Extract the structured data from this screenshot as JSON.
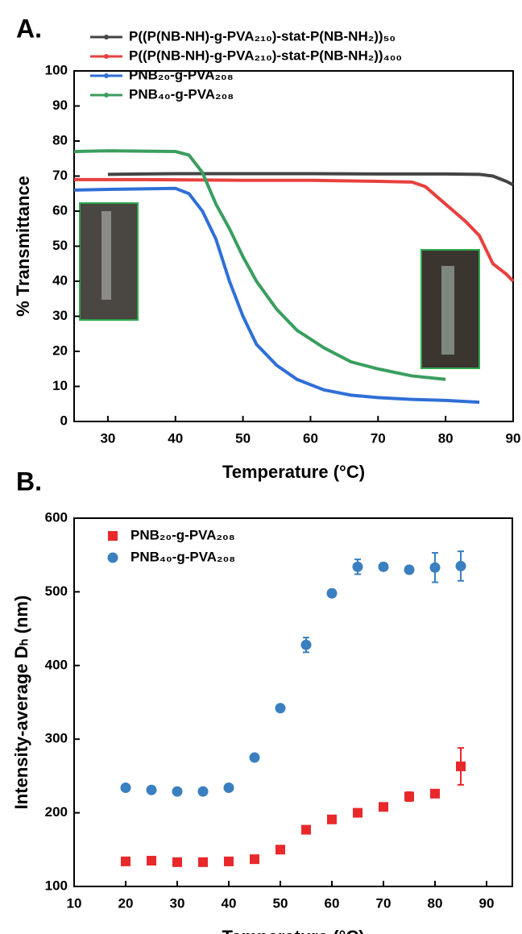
{
  "chart_data": [
    {
      "type": "line",
      "panel_label": "A.",
      "x_label": "Temperature (°C)",
      "y_label": "% Transmittance",
      "xlim": [
        25,
        90
      ],
      "ylim": [
        0,
        100
      ],
      "xticks": [
        30,
        40,
        50,
        60,
        70,
        80,
        90
      ],
      "yticks": [
        0,
        10,
        20,
        30,
        40,
        50,
        60,
        70,
        80,
        90,
        100
      ],
      "legend": "top-right",
      "series": [
        {
          "name": "P((P(NB-NH)-g-PVA₂₁₀)-stat-P(NB-NH₂))₅₀",
          "color": "#444444",
          "x": [
            30,
            35,
            40,
            50,
            60,
            70,
            80,
            85,
            87,
            89,
            90
          ],
          "values": [
            70.5,
            70.6,
            70.7,
            70.7,
            70.7,
            70.6,
            70.6,
            70.5,
            70,
            68.5,
            67.5
          ]
        },
        {
          "name": "P((P(NB-NH)-g-PVA₂₁₀)-stat-P(NB-NH₂))₄₀₀",
          "color": "#e8403e",
          "x": [
            25,
            35,
            50,
            60,
            70,
            75,
            77,
            80,
            83,
            85,
            87,
            89,
            90
          ],
          "values": [
            69,
            69,
            68.8,
            68.8,
            68.5,
            68.3,
            67,
            62,
            57,
            53,
            45,
            42,
            40
          ]
        },
        {
          "name": "PNB₂₀-g-PVA₂₀₈",
          "color": "#2f6fd6",
          "x": [
            25,
            30,
            40,
            42,
            44,
            46,
            48,
            50,
            52,
            55,
            58,
            62,
            66,
            70,
            75,
            80,
            85
          ],
          "values": [
            66,
            66.2,
            66.5,
            65,
            60,
            52,
            40,
            30,
            22,
            16,
            12,
            9,
            7.5,
            6.8,
            6.3,
            6,
            5.5
          ]
        },
        {
          "name": "PNB₄₀-g-PVA₂₀₈",
          "color": "#3a9e5f",
          "x": [
            25,
            30,
            40,
            42,
            44,
            46,
            48,
            50,
            52,
            55,
            58,
            62,
            66,
            70,
            75,
            80
          ],
          "values": [
            77,
            77.2,
            77,
            76,
            71,
            62,
            55,
            47,
            40,
            32,
            26,
            21,
            17,
            15,
            13,
            12
          ]
        }
      ]
    },
    {
      "type": "scatter",
      "panel_label": "B.",
      "x_label": "Temperature (°C)",
      "y_label": "Intensity-average Dₕ (nm)",
      "xlim": [
        10,
        95
      ],
      "ylim": [
        100,
        600
      ],
      "xticks": [
        10,
        20,
        30,
        40,
        50,
        60,
        70,
        80,
        90
      ],
      "yticks": [
        100,
        200,
        300,
        400,
        500,
        600
      ],
      "legend": "top-left",
      "series": [
        {
          "name": "PNB₂₀-g-PVA₂₀₈",
          "color": "#e8282b",
          "marker": "square",
          "x": [
            20,
            25,
            30,
            35,
            40,
            45,
            50,
            55,
            60,
            65,
            70,
            75,
            80,
            85
          ],
          "values": [
            134,
            135,
            133,
            133,
            134,
            137,
            150,
            177,
            191,
            200,
            208,
            222,
            226,
            263
          ],
          "errors": [
            2,
            2,
            2,
            2,
            2,
            2,
            3,
            3,
            3,
            3,
            3,
            6,
            3,
            25
          ]
        },
        {
          "name": "PNB₄₀-g-PVA₂₀₈",
          "color": "#3a7fc0",
          "marker": "circle",
          "x": [
            20,
            25,
            30,
            35,
            40,
            45,
            50,
            55,
            60,
            65,
            70,
            75,
            80,
            85
          ],
          "values": [
            234,
            231,
            229,
            229,
            234,
            275,
            342,
            428,
            498,
            534,
            534,
            530,
            533,
            535
          ],
          "errors": [
            2,
            2,
            2,
            2,
            2,
            3,
            3,
            10,
            5,
            10,
            5,
            5,
            20,
            20
          ]
        }
      ]
    }
  ]
}
